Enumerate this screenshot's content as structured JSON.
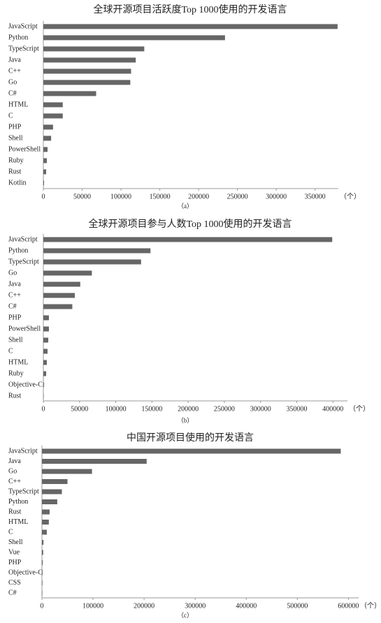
{
  "chart_data": [
    {
      "type": "bar",
      "title": "全球开源项目活跃度Top 1000使用的开发语言",
      "caption": "（a）",
      "unit": "（个）",
      "color": "#666666",
      "categories": [
        "JavaScript",
        "Python",
        "TypeScript",
        "Java",
        "C++",
        "Go",
        "C#",
        "HTML",
        "C",
        "PHP",
        "Shell",
        "PowerShell",
        "Ruby",
        "Rust",
        "Kotlin"
      ],
      "values": [
        379000,
        234000,
        130000,
        119000,
        113000,
        112000,
        68000,
        25000,
        25000,
        12500,
        10000,
        5400,
        4500,
        3600,
        900
      ],
      "xlim": [
        0,
        380000
      ],
      "xticks": [
        0,
        50000,
        100000,
        150000,
        200000,
        250000,
        300000,
        350000
      ]
    },
    {
      "type": "bar",
      "title": "全球开源项目参与人数Top 1000使用的开发语言",
      "caption": "（b）",
      "unit": "（个）",
      "color": "#666666",
      "categories": [
        "JavaScript",
        "Python",
        "TypeScript",
        "Go",
        "Java",
        "C++",
        "C#",
        "PHP",
        "PowerShell",
        "Shell",
        "C",
        "HTML",
        "Ruby",
        "Objective-C",
        "Rust"
      ],
      "values": [
        399000,
        148000,
        135000,
        67000,
        51000,
        43500,
        40000,
        7700,
        7700,
        6800,
        5800,
        4800,
        3900,
        1000,
        500
      ],
      "xlim": [
        0,
        420000
      ],
      "xticks": [
        0,
        50000,
        100000,
        150000,
        200000,
        250000,
        300000,
        350000,
        400000
      ]
    },
    {
      "type": "bar",
      "title": "中国开源项目使用的开发语言",
      "caption": "（c）",
      "unit": "（个）",
      "color": "#666666",
      "categories": [
        "JavaScript",
        "Java",
        "Go",
        "C++",
        "TypeScript",
        "Python",
        "Rust",
        "HTML",
        "C",
        "Shell",
        "Vue",
        "PHP",
        "Objective-C",
        "CSS",
        "C#"
      ],
      "values": [
        585000,
        205000,
        98000,
        50000,
        39000,
        30000,
        15000,
        13500,
        9500,
        3000,
        2500,
        1500,
        1200,
        1000,
        800
      ],
      "xlim": [
        0,
        620000
      ],
      "xticks": [
        0,
        100000,
        200000,
        300000,
        400000,
        500000,
        600000
      ]
    }
  ]
}
